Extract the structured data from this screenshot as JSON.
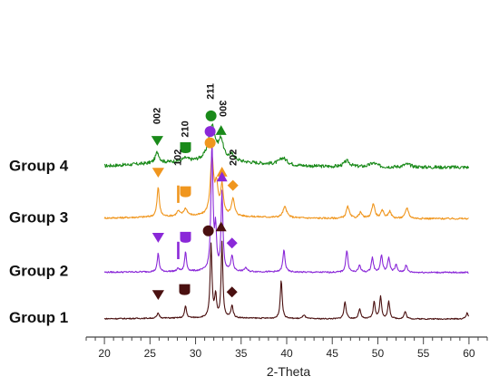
{
  "chart_data": {
    "type": "line",
    "title": "",
    "xlabel": "2-Theta",
    "ylabel": "",
    "xlim": [
      18,
      62
    ],
    "xticks": [
      20,
      25,
      30,
      35,
      40,
      45,
      50,
      55,
      60
    ],
    "grid": false,
    "series": [
      {
        "name": "Group 4",
        "color": "#1a8a1a",
        "offset": 3.1,
        "noise": 0.035,
        "baseline_rise": 0.12,
        "peaks": [
          [
            25.8,
            0.22,
            0.25
          ],
          [
            28.9,
            0.06,
            0.4
          ],
          [
            31.8,
            0.72,
            0.45
          ],
          [
            32.8,
            0.38,
            0.3
          ],
          [
            34.0,
            0.12,
            0.4
          ],
          [
            39.6,
            0.14,
            0.5
          ],
          [
            46.6,
            0.12,
            0.4
          ],
          [
            49.5,
            0.08,
            0.5
          ],
          [
            53.2,
            0.06,
            0.5
          ]
        ]
      },
      {
        "name": "Group 3",
        "color": "#f0961e",
        "offset": 2.05,
        "noise": 0.018,
        "baseline_rise": 0.05,
        "peaks": [
          [
            25.9,
            0.6,
            0.15
          ],
          [
            28.1,
            0.1,
            0.2
          ],
          [
            28.9,
            0.15,
            0.25
          ],
          [
            31.8,
            1.15,
            0.22
          ],
          [
            32.3,
            0.55,
            0.2
          ],
          [
            32.9,
            0.6,
            0.18
          ],
          [
            34.1,
            0.35,
            0.2
          ],
          [
            39.8,
            0.22,
            0.25
          ],
          [
            46.7,
            0.24,
            0.2
          ],
          [
            48.1,
            0.12,
            0.2
          ],
          [
            49.5,
            0.3,
            0.2
          ],
          [
            50.5,
            0.15,
            0.2
          ],
          [
            51.3,
            0.14,
            0.2
          ],
          [
            53.2,
            0.22,
            0.2
          ]
        ]
      },
      {
        "name": "Group 2",
        "color": "#8a28d8",
        "offset": 0.95,
        "noise": 0.015,
        "baseline_rise": 0.02,
        "peaks": [
          [
            25.9,
            0.38,
            0.12
          ],
          [
            28.1,
            0.06,
            0.15
          ],
          [
            28.9,
            0.4,
            0.12
          ],
          [
            31.8,
            2.6,
            0.13
          ],
          [
            32.2,
            0.8,
            0.12
          ],
          [
            32.9,
            1.6,
            0.12
          ],
          [
            34.0,
            0.32,
            0.14
          ],
          [
            35.5,
            0.08,
            0.15
          ],
          [
            39.7,
            0.45,
            0.14
          ],
          [
            46.6,
            0.45,
            0.14
          ],
          [
            48.0,
            0.15,
            0.14
          ],
          [
            49.4,
            0.3,
            0.14
          ],
          [
            50.4,
            0.35,
            0.14
          ],
          [
            51.2,
            0.3,
            0.14
          ],
          [
            52.0,
            0.15,
            0.14
          ],
          [
            53.1,
            0.15,
            0.14
          ]
        ]
      },
      {
        "name": "Group 1",
        "color": "#4a1010",
        "offset": 0.0,
        "noise": 0.012,
        "baseline_rise": 0.02,
        "peaks": [
          [
            25.9,
            0.1,
            0.15
          ],
          [
            28.9,
            0.25,
            0.12
          ],
          [
            31.7,
            1.5,
            0.12
          ],
          [
            32.2,
            0.45,
            0.12
          ],
          [
            32.9,
            1.55,
            0.11
          ],
          [
            34.0,
            0.25,
            0.14
          ],
          [
            39.4,
            0.8,
            0.12
          ],
          [
            41.9,
            0.08,
            0.15
          ],
          [
            46.4,
            0.35,
            0.14
          ],
          [
            48.0,
            0.2,
            0.14
          ],
          [
            49.6,
            0.35,
            0.13
          ],
          [
            50.3,
            0.45,
            0.13
          ],
          [
            51.2,
            0.35,
            0.13
          ],
          [
            53.0,
            0.15,
            0.14
          ],
          [
            59.8,
            0.12,
            0.15
          ]
        ]
      }
    ],
    "group_labels": [
      {
        "text": "Group 4",
        "series": 0
      },
      {
        "text": "Group 3",
        "series": 1
      },
      {
        "text": "Group 2",
        "series": 2
      },
      {
        "text": "Group 1",
        "series": 3
      }
    ],
    "markers": [
      {
        "series": 0,
        "shape": "triangle-down",
        "x": 25.8,
        "lift": 0.55
      },
      {
        "series": 0,
        "shape": "shield",
        "x": 28.9,
        "lift": 0.4
      },
      {
        "series": 0,
        "shape": "circle",
        "x": 31.7,
        "lift": 1.05
      },
      {
        "series": 0,
        "shape": "triangle-up",
        "x": 32.8,
        "lift": 0.75
      },
      {
        "series": 1,
        "shape": "triangle-down",
        "x": 25.9,
        "lift": 0.95
      },
      {
        "series": 1,
        "shape": "bar",
        "x": 28.1,
        "lift": 0.5
      },
      {
        "series": 1,
        "shape": "shield",
        "x": 28.9,
        "lift": 0.55
      },
      {
        "series": 1,
        "shape": "circle",
        "x": 31.6,
        "lift": 1.55
      },
      {
        "series": 1,
        "shape": "triangle-up",
        "x": 32.9,
        "lift": 0.95
      },
      {
        "series": 1,
        "shape": "diamond",
        "x": 34.1,
        "lift": 0.68
      },
      {
        "series": 2,
        "shape": "triangle-down",
        "x": 25.9,
        "lift": 0.72
      },
      {
        "series": 2,
        "shape": "bar",
        "x": 28.1,
        "lift": 0.45
      },
      {
        "series": 2,
        "shape": "shield",
        "x": 28.9,
        "lift": 0.72
      },
      {
        "series": 2,
        "shape": "circle",
        "x": 31.6,
        "lift": 2.88
      },
      {
        "series": 2,
        "shape": "triangle-up",
        "x": 32.9,
        "lift": 1.95
      },
      {
        "series": 2,
        "shape": "diamond",
        "x": 34.0,
        "lift": 0.6
      },
      {
        "series": 3,
        "shape": "triangle-down",
        "x": 25.9,
        "lift": 0.5
      },
      {
        "series": 3,
        "shape": "shield",
        "x": 28.8,
        "lift": 0.6
      },
      {
        "series": 3,
        "shape": "circle",
        "x": 31.4,
        "lift": 1.8
      },
      {
        "series": 3,
        "shape": "triangle-up",
        "x": 32.8,
        "lift": 1.88
      },
      {
        "series": 3,
        "shape": "diamond",
        "x": 34.0,
        "lift": 0.55
      }
    ],
    "plane_labels": [
      {
        "text": "002",
        "x": 25.8,
        "series": 0,
        "lift": 1.05,
        "rotate": -90
      },
      {
        "text": "210",
        "x": 28.9,
        "series": 0,
        "lift": 0.78,
        "rotate": -90
      },
      {
        "text": "211",
        "x": 31.7,
        "series": 0,
        "lift": 1.55,
        "rotate": -90
      },
      {
        "text": "300",
        "x": 32.9,
        "series": 0,
        "lift": 1.2,
        "rotate": 90
      },
      {
        "text": "102",
        "x": 28.1,
        "series": 1,
        "lift": 1.25,
        "rotate": -90
      },
      {
        "text": "202",
        "x": 34.2,
        "series": 1,
        "lift": 1.25,
        "rotate": -90
      }
    ]
  }
}
